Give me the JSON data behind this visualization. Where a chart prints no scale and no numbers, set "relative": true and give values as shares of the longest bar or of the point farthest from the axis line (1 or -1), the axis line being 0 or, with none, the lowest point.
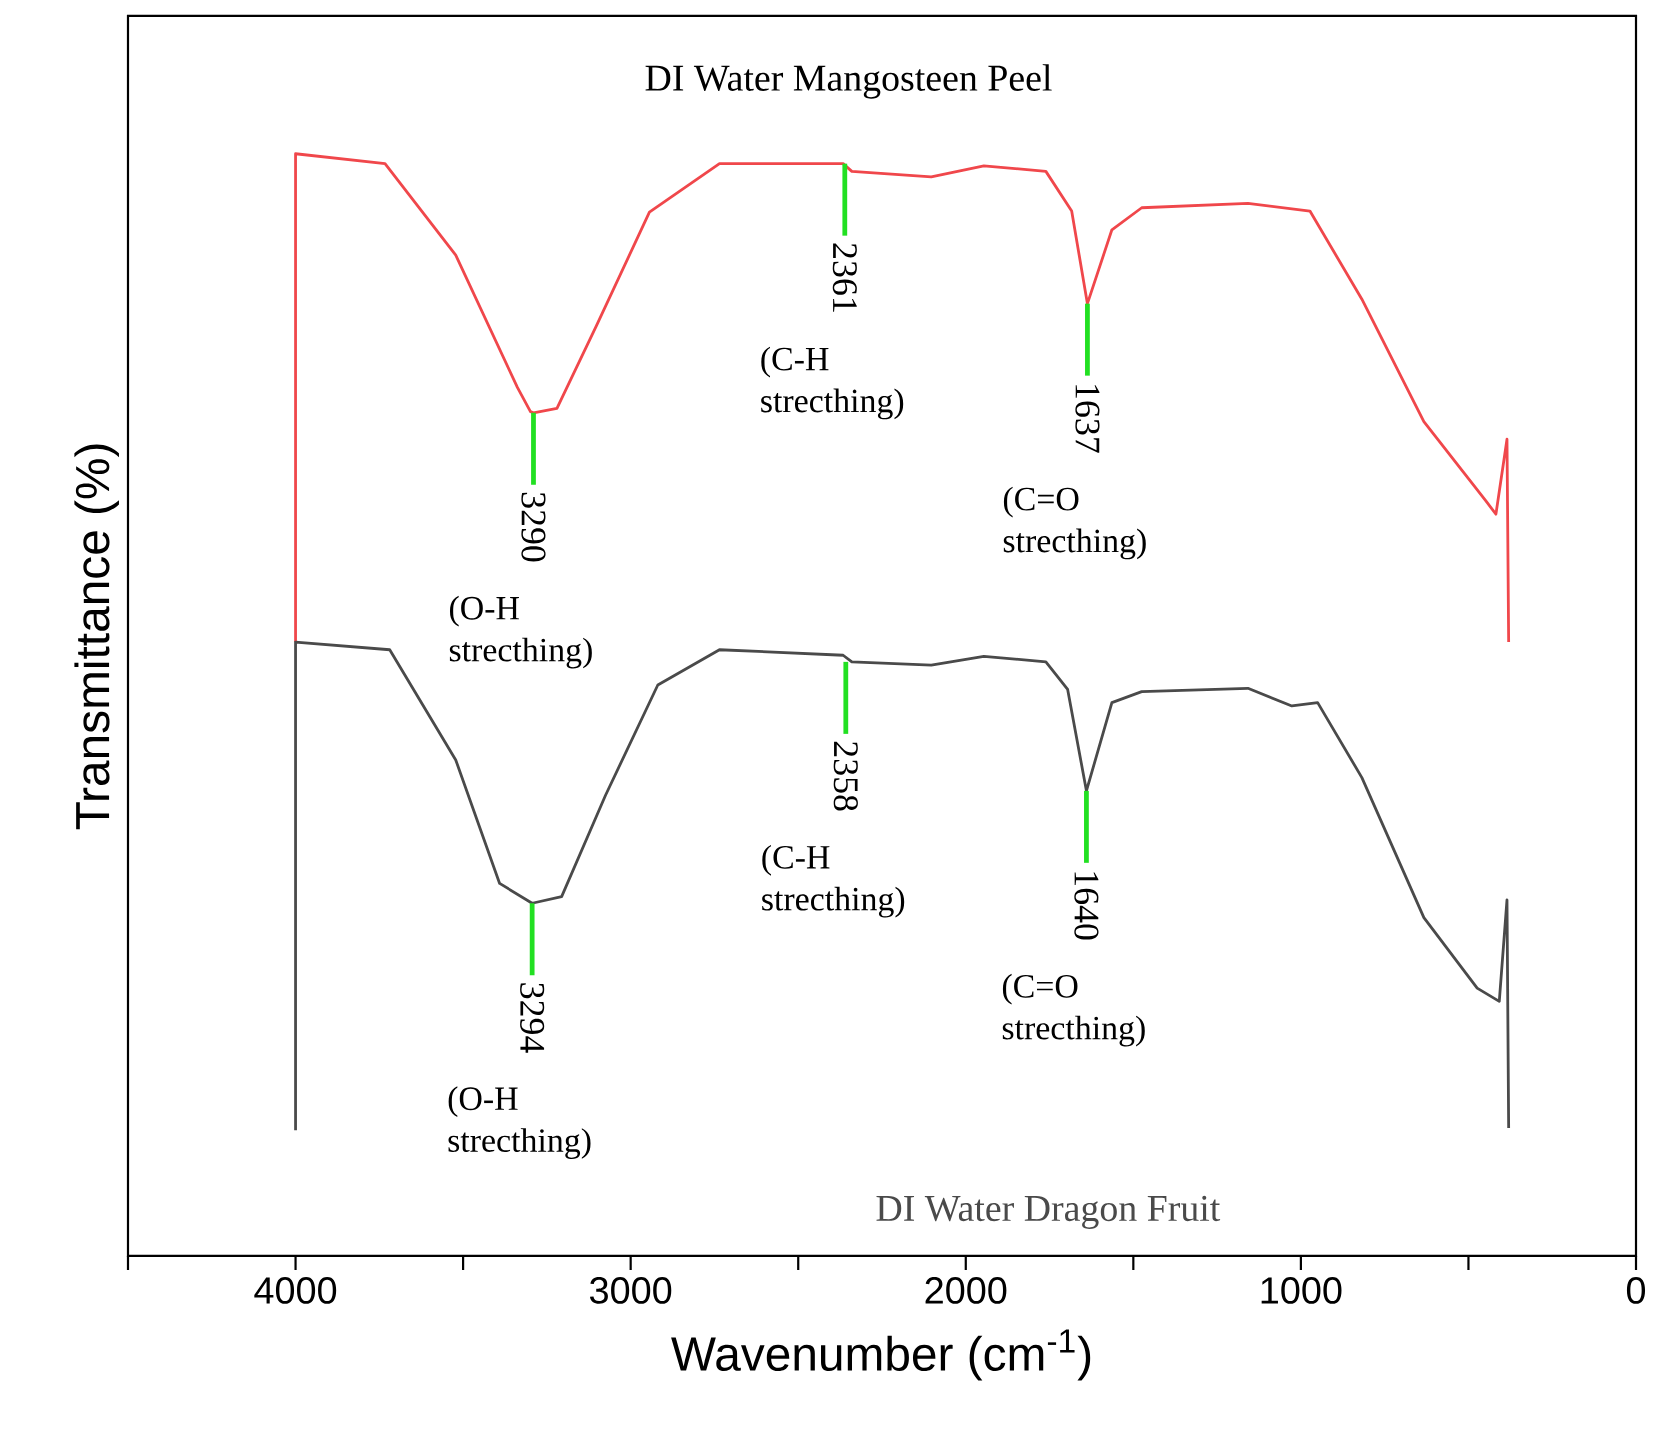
{
  "chart_data": {
    "type": "line",
    "relative": true,
    "xlabel": "Wavenumber (cm$^{-1}$)",
    "ylabel": "Transmittance (%)",
    "xlim": [
      4500,
      0
    ],
    "xticks": [
      {
        "value": 4500,
        "label": null
      },
      4000,
      {
        "value": 3500,
        "label": null
      },
      3000,
      {
        "value": 2500,
        "label": null
      },
      2000,
      {
        "value": 1500,
        "label": null
      },
      1000,
      {
        "value": 500,
        "label": null
      },
      0
    ],
    "grid": false,
    "marker": "none",
    "line_style": "solid",
    "series": [
      {
        "name": "DI Water Mangosteen Peel",
        "color": "#f0474b",
        "x": [
          4000,
          4000,
          3733,
          3522,
          3338,
          3299,
          3290,
          3220,
          3102,
          2944,
          2735,
          2366,
          2340,
          2103,
          1946,
          1761,
          1684,
          1637,
          1564,
          1475,
          1158,
          973,
          818,
          633,
          448,
          418,
          385,
          380
        ],
        "values": [
          0.557,
          1,
          0.991,
          0.908,
          0.788,
          0.766,
          0.765,
          0.769,
          0.844,
          0.947,
          0.991,
          0.991,
          0.984,
          0.979,
          0.989,
          0.984,
          0.948,
          0.864,
          0.931,
          0.951,
          0.955,
          0.948,
          0.868,
          0.757,
          0.685,
          0.673,
          0.741,
          0.557
        ]
      },
      {
        "name": "DI Water Dragon Fruit",
        "color": "#4a4a4a",
        "x": [
          4000,
          4000,
          3719,
          3522,
          3391,
          3294,
          3206,
          3075,
          2919,
          2735,
          2366,
          2340,
          2103,
          1946,
          1761,
          1696,
          1640,
          1564,
          1475,
          1158,
          1027,
          950,
          818,
          633,
          474,
          408,
          385,
          380
        ],
        "values": [
          0.114,
          0.557,
          0.55,
          0.45,
          0.338,
          0.32,
          0.326,
          0.418,
          0.518,
          0.55,
          0.545,
          0.539,
          0.536,
          0.544,
          0.539,
          0.514,
          0.422,
          0.502,
          0.512,
          0.515,
          0.499,
          0.502,
          0.434,
          0.307,
          0.243,
          0.231,
          0.323,
          0.116
        ]
      }
    ],
    "annotations": [
      {
        "text": "3290",
        "x": 3290,
        "y": 0.765
      },
      "(O-H strecthing)",
      {
        "text": "2361",
        "x": 2361,
        "y": 0.991
      },
      "(C-H strecthing)",
      {
        "text": "1637",
        "x": 1637,
        "y": 0.864
      },
      "(C=O strecthing)",
      {
        "text": "3294",
        "x": 3294,
        "y": 0.32
      },
      "(O-H strecthing)",
      {
        "text": "2358",
        "x": 2358,
        "y": 0.539
      },
      "(C-H strecthing)",
      {
        "text": "1640",
        "x": 1640,
        "y": 0.422
      },
      "(C=O strecthing)"
    ]
  }
}
